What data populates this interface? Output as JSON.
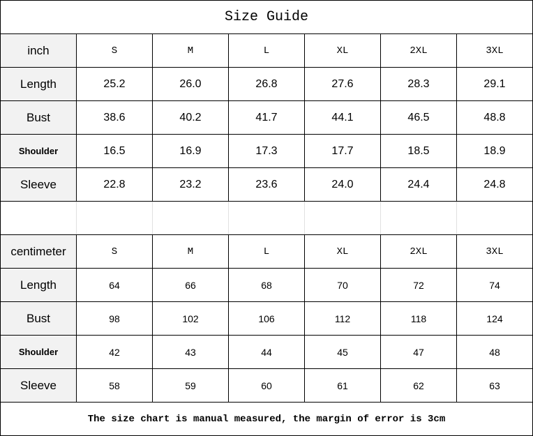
{
  "title": "Size Guide",
  "sizes": [
    "S",
    "M",
    "L",
    "XL",
    "2XL",
    "3XL"
  ],
  "inch": {
    "unit": "inch",
    "rows": [
      {
        "label": "Length",
        "values": [
          "25.2",
          "26.0",
          "26.8",
          "27.6",
          "28.3",
          "29.1"
        ]
      },
      {
        "label": "Bust",
        "values": [
          "38.6",
          "40.2",
          "41.7",
          "44.1",
          "46.5",
          "48.8"
        ]
      },
      {
        "label": "Shoulder",
        "values": [
          "16.5",
          "16.9",
          "17.3",
          "17.7",
          "18.5",
          "18.9"
        ]
      },
      {
        "label": "Sleeve",
        "values": [
          "22.8",
          "23.2",
          "23.6",
          "24.0",
          "24.4",
          "24.8"
        ]
      }
    ]
  },
  "cm": {
    "unit": "centimeter",
    "rows": [
      {
        "label": "Length",
        "values": [
          "64",
          "66",
          "68",
          "70",
          "72",
          "74"
        ]
      },
      {
        "label": "Bust",
        "values": [
          "98",
          "102",
          "106",
          "112",
          "118",
          "124"
        ]
      },
      {
        "label": "Shoulder",
        "values": [
          "42",
          "43",
          "44",
          "45",
          "47",
          "48"
        ]
      },
      {
        "label": "Sleeve",
        "values": [
          "58",
          "59",
          "60",
          "61",
          "62",
          "63"
        ]
      }
    ]
  },
  "footer": "The size chart is manual measured, the margin of error is 3cm"
}
